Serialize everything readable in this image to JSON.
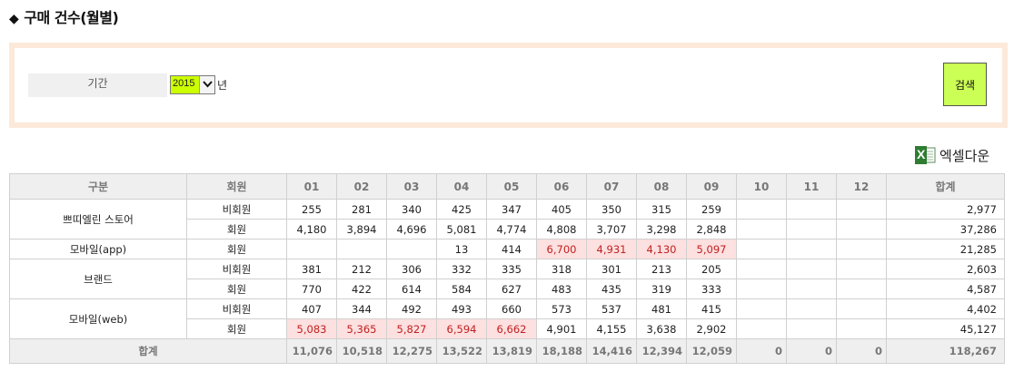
{
  "page": {
    "title": "구매 건수(월별)",
    "title_marker": "◆"
  },
  "filter": {
    "period_label": "기간",
    "year_value": "2015",
    "year_unit": "년",
    "search_label": "검색"
  },
  "excel": {
    "label": "엑셀다운",
    "icon_letter": "X"
  },
  "table": {
    "headers": [
      "구분",
      "회원",
      "01",
      "02",
      "03",
      "04",
      "05",
      "06",
      "07",
      "08",
      "09",
      "10",
      "11",
      "12",
      "합계"
    ],
    "groups": [
      {
        "name": "쁘띠엘린 스토어",
        "rows": [
          {
            "type": "비회원",
            "values": [
              "255",
              "281",
              "340",
              "425",
              "347",
              "405",
              "350",
              "315",
              "259",
              "",
              "",
              ""
            ],
            "total": "2,977",
            "highlight": []
          },
          {
            "type": "회원",
            "values": [
              "4,180",
              "3,894",
              "4,696",
              "5,081",
              "4,774",
              "4,808",
              "3,707",
              "3,298",
              "2,848",
              "",
              "",
              ""
            ],
            "total": "37,286",
            "highlight": []
          }
        ]
      },
      {
        "name": "모바일(app)",
        "rows": [
          {
            "type": "회원",
            "values": [
              "",
              "",
              "",
              "13",
              "414",
              "6,700",
              "4,931",
              "4,130",
              "5,097",
              "",
              "",
              ""
            ],
            "total": "21,285",
            "highlight": [
              5,
              6,
              7,
              8
            ]
          }
        ]
      },
      {
        "name": "브랜드",
        "rows": [
          {
            "type": "비회원",
            "values": [
              "381",
              "212",
              "306",
              "332",
              "335",
              "318",
              "301",
              "213",
              "205",
              "",
              "",
              ""
            ],
            "total": "2,603",
            "highlight": []
          },
          {
            "type": "회원",
            "values": [
              "770",
              "422",
              "614",
              "584",
              "627",
              "483",
              "435",
              "319",
              "333",
              "",
              "",
              ""
            ],
            "total": "4,587",
            "highlight": []
          }
        ]
      },
      {
        "name": "모바일(web)",
        "rows": [
          {
            "type": "비회원",
            "values": [
              "407",
              "344",
              "492",
              "493",
              "660",
              "573",
              "537",
              "481",
              "415",
              "",
              "",
              ""
            ],
            "total": "4,402",
            "highlight": []
          },
          {
            "type": "회원",
            "values": [
              "5,083",
              "5,365",
              "5,827",
              "6,594",
              "6,662",
              "4,901",
              "4,155",
              "3,638",
              "2,902",
              "",
              "",
              ""
            ],
            "total": "45,127",
            "highlight": [
              0,
              1,
              2,
              3,
              4
            ]
          }
        ]
      }
    ],
    "footer": {
      "label": "합계",
      "values": [
        "11,076",
        "10,518",
        "12,275",
        "13,522",
        "13,819",
        "18,188",
        "14,416",
        "12,394",
        "12,059",
        "0",
        "0",
        "0"
      ],
      "total": "118,267"
    }
  },
  "colors": {
    "highlight_bg": "#fde0e0",
    "highlight_text": "#c02020",
    "filter_border": "#fde9da",
    "search_button": "#ccff55",
    "year_value_bg": "#ccff00",
    "header_bg": "#efefef",
    "excel_green": "#2e7d32"
  }
}
